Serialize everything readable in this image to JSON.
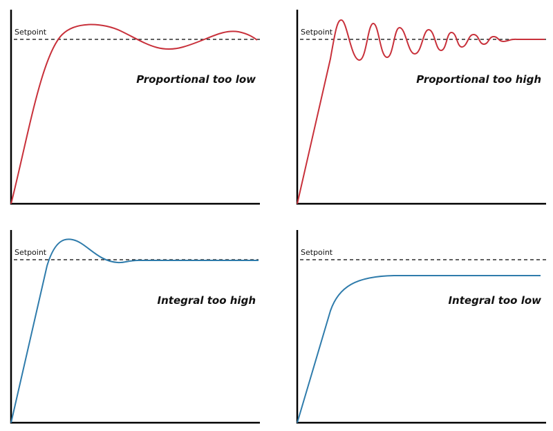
{
  "panels": [
    {
      "setpoint_label": "Setpoint",
      "label": "Proportional too low"
    },
    {
      "setpoint_label": "Setpoint",
      "label": "Proportional too high"
    },
    {
      "setpoint_label": "Setpoint",
      "label": "Integral too high"
    },
    {
      "setpoint_label": "Setpoint",
      "label": "Integral too low"
    }
  ]
}
